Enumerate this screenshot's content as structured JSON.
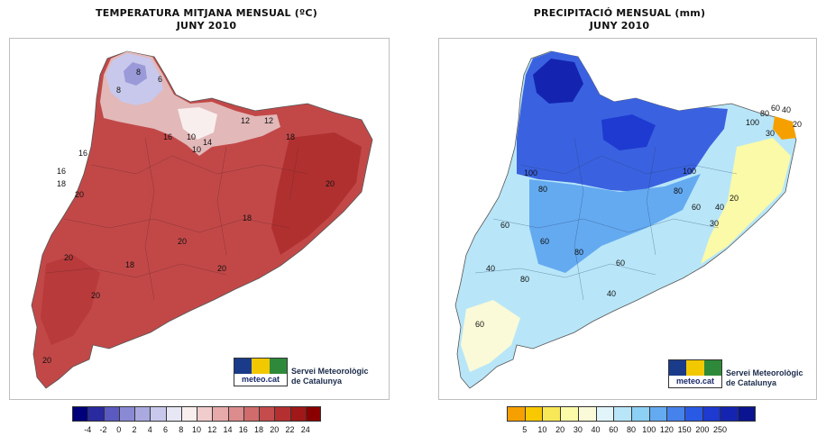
{
  "left_map": {
    "title_line1": "TEMPERATURA MITJANA MENSUAL (ºC)",
    "title_line2": "JUNY 2010",
    "contour_labels": [
      "8",
      "6",
      "8",
      "10",
      "12",
      "12",
      "10",
      "14",
      "16",
      "18",
      "16",
      "16",
      "18",
      "20",
      "20",
      "18",
      "20",
      "20",
      "18",
      "20",
      "20",
      "20"
    ],
    "logo_text": "meteo.cat",
    "service_line1": "Servei Meteorològic",
    "service_line2": "de Catalunya",
    "legend_colors": [
      "#00007a",
      "#2a2aa0",
      "#5a5ac0",
      "#8a8ad4",
      "#aaaae0",
      "#c8c8ec",
      "#e6e6f4",
      "#f8eeee",
      "#f0cccc",
      "#e6aaaa",
      "#dc8c8c",
      "#d06c6c",
      "#c44c4c",
      "#b43030",
      "#a01818",
      "#8a0000"
    ],
    "legend_ticks": [
      "-4",
      "-2",
      "0",
      "2",
      "4",
      "6",
      "8",
      "10",
      "12",
      "14",
      "16",
      "18",
      "20",
      "22",
      "24"
    ]
  },
  "right_map": {
    "title_line1": "PRECIPITACIÓ MENSUAL (mm)",
    "title_line2": "JUNY 2010",
    "contour_labels": [
      "100",
      "80",
      "60",
      "40",
      "30",
      "20",
      "100",
      "80",
      "60",
      "60",
      "80",
      "80",
      "60",
      "40",
      "60",
      "40",
      "30",
      "40",
      "20",
      "60",
      "80",
      "100"
    ],
    "logo_text": "meteo.cat",
    "service_line1": "Servei Meteorològic",
    "service_line2": "de Catalunya",
    "legend_colors": [
      "#f5a000",
      "#f8c800",
      "#f8e858",
      "#fafaa8",
      "#fafad8",
      "#e0f4fa",
      "#b8e6f8",
      "#8cd0f4",
      "#64aaf0",
      "#4682ec",
      "#2a5ae4",
      "#1e3ad0",
      "#1424b0",
      "#0a1490"
    ],
    "legend_ticks": [
      "5",
      "10",
      "20",
      "30",
      "40",
      "60",
      "80",
      "100",
      "120",
      "150",
      "200",
      "250"
    ]
  }
}
